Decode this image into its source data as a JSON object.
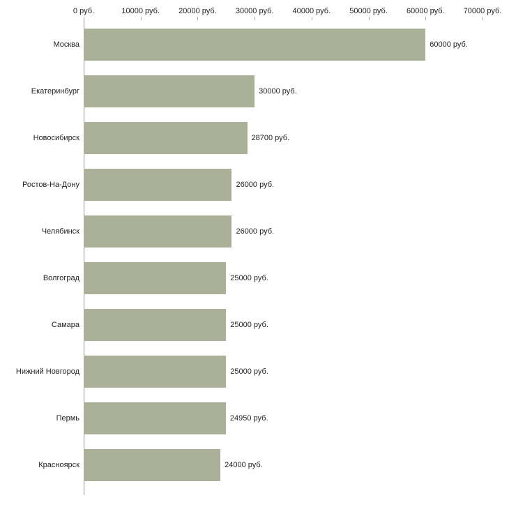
{
  "chart_data": {
    "type": "bar",
    "orientation": "horizontal",
    "title": "",
    "xlabel": "",
    "ylabel": "",
    "categories": [
      "Москва",
      "Екатеринбург",
      "Новосибирск",
      "Ростов-На-Дону",
      "Челябинск",
      "Волгоград",
      "Самара",
      "Нижний Новгород",
      "Пермь",
      "Красноярск"
    ],
    "values": [
      60000,
      30000,
      28700,
      26000,
      26000,
      25000,
      25000,
      25000,
      24950,
      24000
    ],
    "value_labels": [
      "60000 руб.",
      "30000 руб.",
      "28700 руб.",
      "26000 руб.",
      "26000 руб.",
      "25000 руб.",
      "25000 руб.",
      "25000 руб.",
      "24950 руб.",
      "24000 руб."
    ],
    "x_ticks": [
      0,
      10000,
      20000,
      30000,
      40000,
      50000,
      60000,
      70000
    ],
    "x_tick_labels": [
      "0 руб.",
      "10000 руб.",
      "20000 руб.",
      "30000 руб.",
      "40000 руб.",
      "50000 руб.",
      "60000 руб.",
      "70000 руб."
    ],
    "xlim": [
      0,
      70000
    ],
    "grid": false,
    "legend_position": "none",
    "bar_color": "#abb198",
    "axis_color": "#8f8f8f",
    "text_color": "#222222"
  }
}
